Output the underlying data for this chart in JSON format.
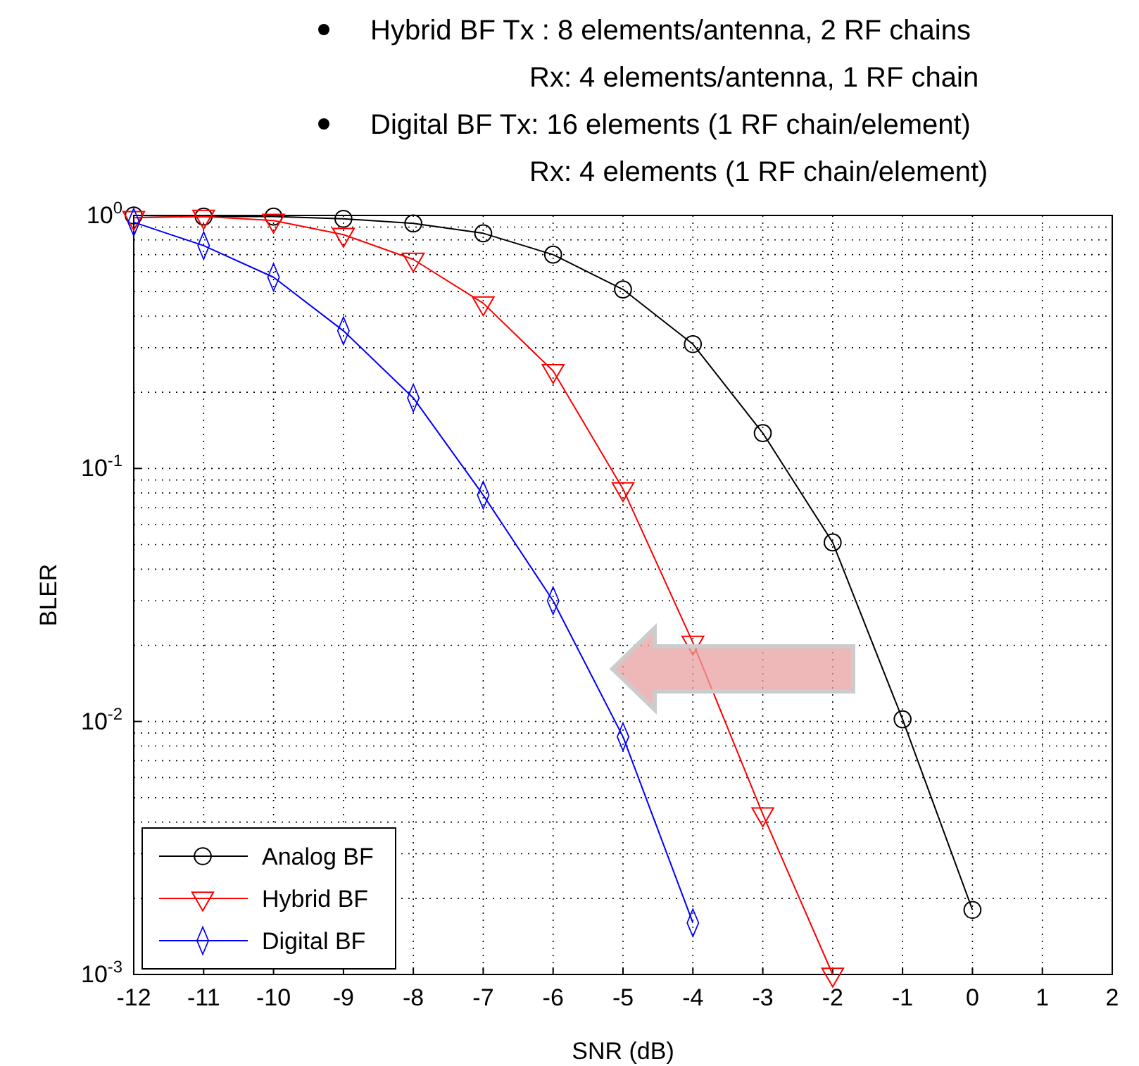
{
  "chart_data": {
    "type": "line",
    "annotations": [
      "Hybrid BF Tx : 8 elements/antenna, 2 RF chains",
      "Rx: 4 elements/antenna, 1 RF chain",
      "Digital BF Tx: 16 elements  (1 RF chain/element)",
      "Rx:  4 elements  (1 RF chain/element)"
    ],
    "xlabel": "SNR (dB)",
    "ylabel": "BLER",
    "x": [
      -12,
      -11,
      -10,
      -9,
      -8,
      -7,
      -6,
      -5,
      -4,
      -3,
      -2,
      -1,
      0
    ],
    "series": [
      {
        "name": "Analog BF",
        "color": "#000000",
        "marker": "circle",
        "values": [
          1.0,
          0.99,
          0.99,
          0.97,
          0.93,
          0.85,
          0.7,
          0.51,
          0.31,
          0.138,
          0.051,
          0.0102,
          0.0018
        ]
      },
      {
        "name": "Hybrid BF",
        "color": "#ff0000",
        "marker": "triangle",
        "values": [
          0.98,
          0.99,
          0.955,
          0.84,
          0.67,
          0.45,
          0.243,
          0.083,
          0.0205,
          0.0043,
          0.001,
          null,
          null
        ]
      },
      {
        "name": "Digital BF",
        "color": "#0000ff",
        "marker": "diamond",
        "values": [
          0.94,
          0.76,
          0.57,
          0.35,
          0.19,
          0.0785,
          0.03,
          0.0087,
          0.0016,
          null,
          null,
          null,
          null
        ]
      }
    ],
    "log": true,
    "grid": true,
    "legend": "bottom left",
    "xlim": [
      -12,
      2
    ],
    "xticks": [
      -12,
      -11,
      -10,
      -9,
      -8,
      -7,
      -6,
      -5,
      -4,
      -3,
      -2,
      -1,
      0,
      1,
      2
    ],
    "ylim": [
      0.001,
      1
    ],
    "yticks": [
      {
        "value": 0.001,
        "label": "10$^{-3}$"
      },
      {
        "value": 0.01,
        "label": "10$^{-2}$"
      },
      {
        "value": 0.1,
        "label": "10$^{-1}$"
      },
      {
        "value": 1,
        "label": "10$^{0}$"
      }
    ]
  }
}
